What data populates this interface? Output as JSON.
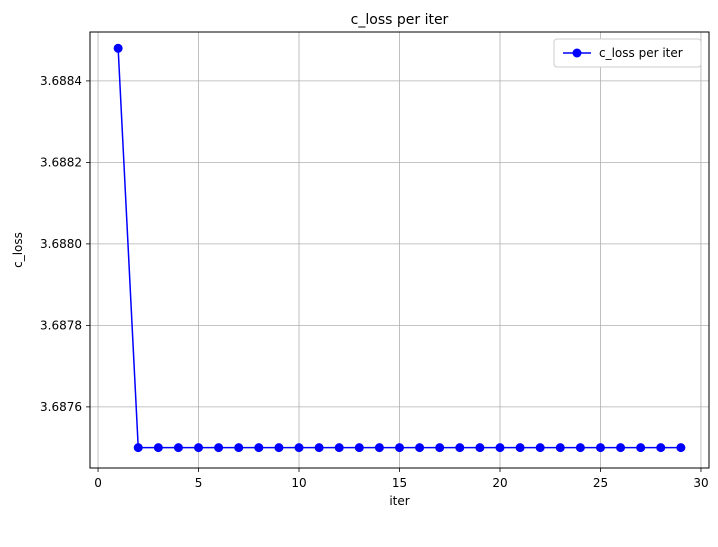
{
  "chart_data": {
    "type": "line",
    "title": "c_loss per iter",
    "xlabel": "iter",
    "ylabel": "c_loss",
    "xlim": [
      -0.4,
      30.4
    ],
    "ylim": [
      3.68745,
      3.68852
    ],
    "xticks": [
      0,
      5,
      10,
      15,
      20,
      25,
      30
    ],
    "xtick_labels": [
      "0",
      "5",
      "10",
      "15",
      "20",
      "25",
      "30"
    ],
    "yticks": [
      3.6876,
      3.6878,
      3.688,
      3.6882,
      3.6884
    ],
    "ytick_labels": [
      "3.6876",
      "3.6878",
      "3.6880",
      "3.6882",
      "3.6884"
    ],
    "grid": true,
    "legend_position": "top-right",
    "series": [
      {
        "name": "c_loss per iter",
        "color": "#0000ff",
        "marker": "circle",
        "x": [
          1,
          2,
          3,
          4,
          5,
          6,
          7,
          8,
          9,
          10,
          11,
          12,
          13,
          14,
          15,
          16,
          17,
          18,
          19,
          20,
          21,
          22,
          23,
          24,
          25,
          26,
          27,
          28,
          29
        ],
        "y": [
          3.68848,
          3.6875,
          3.6875,
          3.6875,
          3.6875,
          3.6875,
          3.6875,
          3.6875,
          3.6875,
          3.6875,
          3.6875,
          3.6875,
          3.6875,
          3.6875,
          3.6875,
          3.6875,
          3.6875,
          3.6875,
          3.6875,
          3.6875,
          3.6875,
          3.6875,
          3.6875,
          3.6875,
          3.6875,
          3.6875,
          3.6875,
          3.6875,
          3.6875
        ]
      }
    ]
  }
}
